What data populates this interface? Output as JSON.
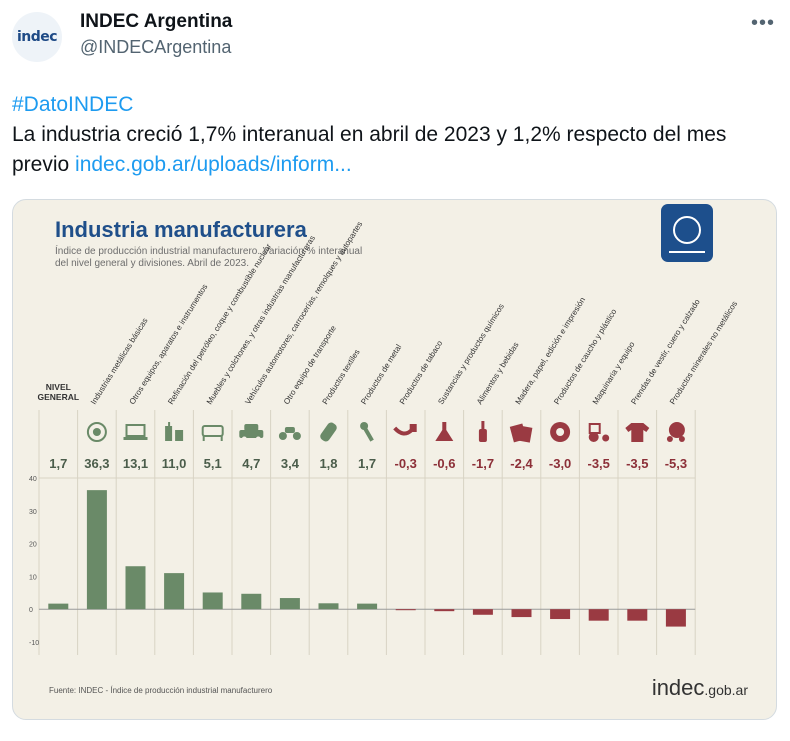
{
  "tweet": {
    "author_name": "INDEC Argentina",
    "author_handle": "@INDECArgentina",
    "avatar_text": "indec",
    "more_icon": "more-horizontal-icon",
    "hashtag": "#DatoINDEC",
    "body": "La industria creció 1,7% interanual en abril de 2023 y 1,2% respecto del mes previo ",
    "link_text": "indec.gob.ar/uploads/inform..."
  },
  "chart_data": {
    "type": "bar",
    "title": "Industria manufacturera",
    "subtitle_lines": [
      "Índice de producción industrial manufacturero. Variación % interanual",
      "del nivel general y divisiones. Abril de 2023."
    ],
    "categories": [
      "NIVEL GENERAL",
      "Industrias metálicas básicas",
      "Otros equipos, aparatos e instrumentos",
      "Refinación del petróleo, coque y combustible nuclear",
      "Muebles y colchones, y otras industrias manufactureras",
      "Vehículos automotores, carrocerías, remolques y autopartes",
      "Otro equipo de transporte",
      "Productos textiles",
      "Productos de metal",
      "Productos de tabaco",
      "Sustancias y productos químicos",
      "Alimentos y bebidas",
      "Madera, papel, edición e impresión",
      "Productos de caucho y plástico",
      "Maquinaria y equipo",
      "Prendas de vestir, cuero y calzado",
      "Productos minerales no metálicos"
    ],
    "values": [
      1.7,
      36.3,
      13.1,
      11.0,
      5.1,
      4.7,
      3.4,
      1.8,
      1.7,
      -0.3,
      -0.6,
      -1.7,
      -2.4,
      -3.0,
      -3.5,
      -3.5,
      -5.3
    ],
    "value_labels": [
      "1,7",
      "36,3",
      "13,1",
      "11,0",
      "5,1",
      "4,7",
      "3,4",
      "1,8",
      "1,7",
      "-0,3",
      "-0,6",
      "-1,7",
      "-2,4",
      "-3,0",
      "-3,5",
      "-3,5",
      "-5,3"
    ],
    "icons": [
      "",
      "helmet-icon",
      "laptop-icon",
      "refinery-icon",
      "sofa-icon",
      "car-icon",
      "motorcycle-icon",
      "thread-spool-icon",
      "wrench-icon",
      "pipe-icon",
      "flask-icon",
      "bottle-icon",
      "paper-icon",
      "tire-icon",
      "tractor-icon",
      "shirt-icon",
      "cement-mixer-icon"
    ],
    "yticks": [
      "40",
      "30",
      "20",
      "10",
      "0",
      "-10"
    ],
    "ylim": [
      -10,
      40
    ],
    "grid": true,
    "colors": {
      "positive": "#6a8a68",
      "negative": "#9a3a42",
      "title": "#1f4f8a",
      "positive_label": "#4b5d4b",
      "negative_label": "#8c2f38"
    },
    "source": "Fuente: INDEC - Índice de producción industrial manufacturero",
    "brand_main": "indec",
    "brand_suffix": ".gob.ar"
  }
}
